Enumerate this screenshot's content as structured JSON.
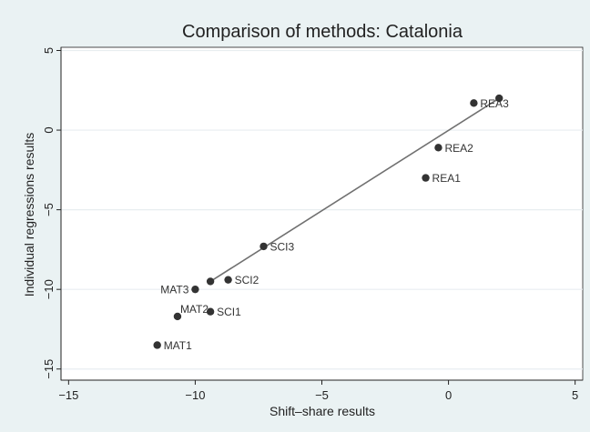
{
  "chart_data": {
    "type": "scatter",
    "title": "Comparison of methods: Catalonia",
    "xlabel": "Shift–share results",
    "ylabel": "Individual regressions results",
    "xlim": [
      -15.3,
      5.3
    ],
    "ylim": [
      -15.7,
      5.2
    ],
    "xticks": [
      -15,
      -10,
      -5,
      0,
      5
    ],
    "xtick_labels": [
      "−15",
      "−10",
      "−5",
      "0",
      "5"
    ],
    "yticks": [
      -15,
      -10,
      -5,
      0,
      5
    ],
    "ytick_labels": [
      "−15",
      "−10",
      "−5",
      "0",
      "5"
    ],
    "grid": true,
    "legend": "none",
    "point_color": "#333333",
    "fit_line_color": "#707070",
    "plot_background": "#ffffff",
    "page_background": "#eaf2f3",
    "grid_color": "#e8eef0",
    "points": [
      {
        "label": "MAT1",
        "x": -11.5,
        "y": -13.5
      },
      {
        "label": "MAT2",
        "x": -10.7,
        "y": -11.7
      },
      {
        "label": "MAT3",
        "x": -10.0,
        "y": -10.0
      },
      {
        "label": "SCI1",
        "x": -9.4,
        "y": -11.4
      },
      {
        "label": "SCI2",
        "x": -8.7,
        "y": -9.4
      },
      {
        "label": "SCI3",
        "x": -7.3,
        "y": -7.3
      },
      {
        "label": "REA1",
        "x": -0.9,
        "y": -3.0
      },
      {
        "label": "REA2",
        "x": -0.4,
        "y": -1.1
      },
      {
        "label": "REA3",
        "x": 1.0,
        "y": 1.7
      }
    ],
    "extra_points": [
      {
        "x": -9.4,
        "y": -9.5
      },
      {
        "x": 2.0,
        "y": 2.0
      }
    ],
    "fit_line": {
      "x": [
        -9.4,
        2.0
      ],
      "y": [
        -9.5,
        2.0
      ]
    }
  }
}
